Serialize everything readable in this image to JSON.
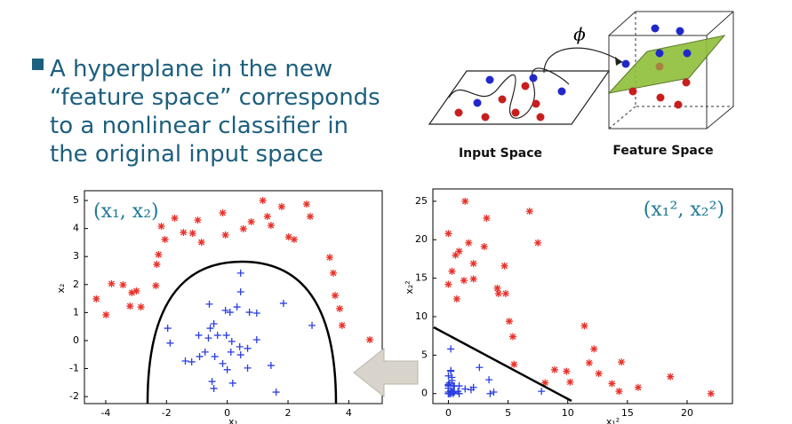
{
  "bullet": [
    "A hyperplane in the new",
    "“feature space” corresponds",
    "to a nonlinear classifier in",
    "the original input space"
  ],
  "diagram": {
    "map_label": "ϕ",
    "input_label": "Input Space",
    "feature_label": "Feature Space"
  },
  "chart_data": [
    {
      "type": "scatter",
      "annotation": "(x₁, x₂)",
      "xlabel": "x₁",
      "ylabel": "x₂",
      "xlim": [
        -4.7,
        5.1
      ],
      "ylim": [
        -2.25,
        5.35
      ],
      "xticks": [
        -4,
        -2,
        0,
        2,
        4
      ],
      "yticks": [
        -2,
        -1,
        0,
        1,
        2,
        3,
        4,
        5
      ],
      "series": [
        {
          "color": "#e8322a",
          "marker": "star",
          "x": [
            -4.31,
            -3.99,
            -3.81,
            -3.43,
            -3.14,
            -3.2,
            -2.99,
            -2.84,
            -2.35,
            -2.32,
            -2.26,
            -2.17,
            -2.05,
            -1.73,
            -1.44,
            -1.14,
            -0.97,
            -0.85,
            -0.15,
            -0.06,
            0.53,
            0.79,
            1.17,
            1.32,
            1.44,
            1.79,
            2.02,
            2.2,
            2.61,
            2.73,
            3.37,
            3.49,
            3.55,
            3.7,
            3.78,
            4.69
          ],
          "values": [
            1.49,
            0.92,
            2.03,
            1.99,
            1.71,
            1.23,
            1.77,
            1.2,
            1.96,
            2.72,
            3.07,
            4.08,
            3.61,
            4.37,
            3.86,
            3.83,
            4.3,
            3.51,
            4.56,
            3.77,
            3.99,
            4.24,
            5.0,
            4.43,
            4.11,
            4.78,
            3.7,
            3.61,
            4.87,
            4.43,
            2.97,
            2.41,
            1.61,
            1.14,
            0.54,
            0.03
          ]
        },
        {
          "color": "#2b3fe0",
          "marker": "plus",
          "x": [
            0.44,
            0.44,
            0.32,
            -0.59,
            -0.44,
            -0.56,
            -0.06,
            0.09,
            0.73,
            0.97,
            1.85,
            -1.96,
            -1.88,
            -0.94,
            -0.62,
            -0.32,
            -0.03,
            0.15,
            0.41,
            0.97,
            0.67,
            -0.73,
            -1.17,
            -1.38,
            -0.91,
            -0.41,
            -0.15,
            0.12,
            0,
            0.18,
            0.44,
            1.44,
            0.67,
            -0.5,
            -0.44,
            1.61,
            2.79
          ],
          "values": [
            2.41,
            1.74,
            1.2,
            1.3,
            0.6,
            0.44,
            1.08,
            1.01,
            1.01,
            0.98,
            1.33,
            0.44,
            -0.09,
            0.19,
            0.09,
            0.19,
            0.19,
            -0.03,
            -0.22,
            0.03,
            -0.28,
            -0.41,
            -0.76,
            -0.73,
            -0.57,
            -0.57,
            -0.82,
            -0.41,
            -1.04,
            -1.52,
            -0.51,
            -0.89,
            -0.98,
            -1.46,
            -1.71,
            -1.84,
            0.54
          ]
        }
      ]
    },
    {
      "type": "scatter",
      "annotation": "(x₁², x₂²)",
      "xlabel": "x₁²",
      "ylabel": "x₂²",
      "xlim": [
        -1.3,
        23.8
      ],
      "ylim": [
        -1.3,
        26.6
      ],
      "xticks": [
        0,
        5,
        10,
        15,
        20
      ],
      "yticks": [
        0,
        5,
        10,
        15,
        20,
        25
      ],
      "series": [
        {
          "color": "#e8322a",
          "marker": "star",
          "x": [
            18.6,
            15.9,
            14.5,
            11.8,
            9.9,
            10.2,
            8.9,
            8.1,
            5.5,
            5.4,
            5.1,
            4.7,
            4.2,
            3.0,
            2.1,
            1.3,
            0.9,
            0.7,
            0.0,
            0.0,
            0.3,
            0.6,
            1.4,
            1.7,
            2.1,
            3.2,
            4.1,
            4.8,
            6.8,
            7.5,
            11.4,
            12.2,
            12.6,
            13.7,
            14.3,
            22.0
          ],
          "values": [
            2.2,
            0.8,
            4.1,
            4.0,
            2.9,
            1.5,
            3.1,
            1.4,
            3.8,
            7.4,
            9.4,
            16.6,
            13.0,
            19.1,
            14.9,
            14.7,
            18.5,
            12.3,
            20.8,
            14.2,
            15.9,
            18.0,
            25.0,
            19.6,
            16.9,
            22.8,
            13.7,
            13.0,
            23.7,
            19.6,
            8.8,
            5.8,
            2.6,
            1.3,
            0.3,
            0.0
          ]
        },
        {
          "color": "#2b3fe0",
          "marker": "plus",
          "x": [
            0.2,
            0.2,
            0.1,
            0.3,
            0.2,
            0.3,
            0.0,
            0.0,
            0.5,
            0.9,
            3.4,
            3.8,
            3.5,
            0.9,
            0.4,
            0.1,
            0.0,
            0.0,
            0.2,
            0.9,
            0.4,
            0.5,
            1.4,
            1.9,
            0.8,
            0.2,
            0.0,
            0.0,
            0.0,
            0.0,
            0.2,
            2.1,
            0.4,
            0.3,
            0.2,
            2.6,
            7.8
          ],
          "values": [
            5.8,
            3.0,
            1.4,
            1.7,
            0.4,
            0.2,
            1.2,
            1.0,
            1.0,
            1.0,
            1.8,
            0.2,
            0.0,
            0.0,
            0.0,
            0.0,
            0.0,
            0.0,
            0.0,
            0.0,
            0.1,
            0.2,
            0.6,
            0.5,
            0.3,
            0.3,
            0.7,
            0.2,
            1.1,
            2.3,
            0.3,
            0.8,
            1.0,
            2.1,
            2.9,
            3.4,
            0.3
          ]
        }
      ]
    }
  ]
}
